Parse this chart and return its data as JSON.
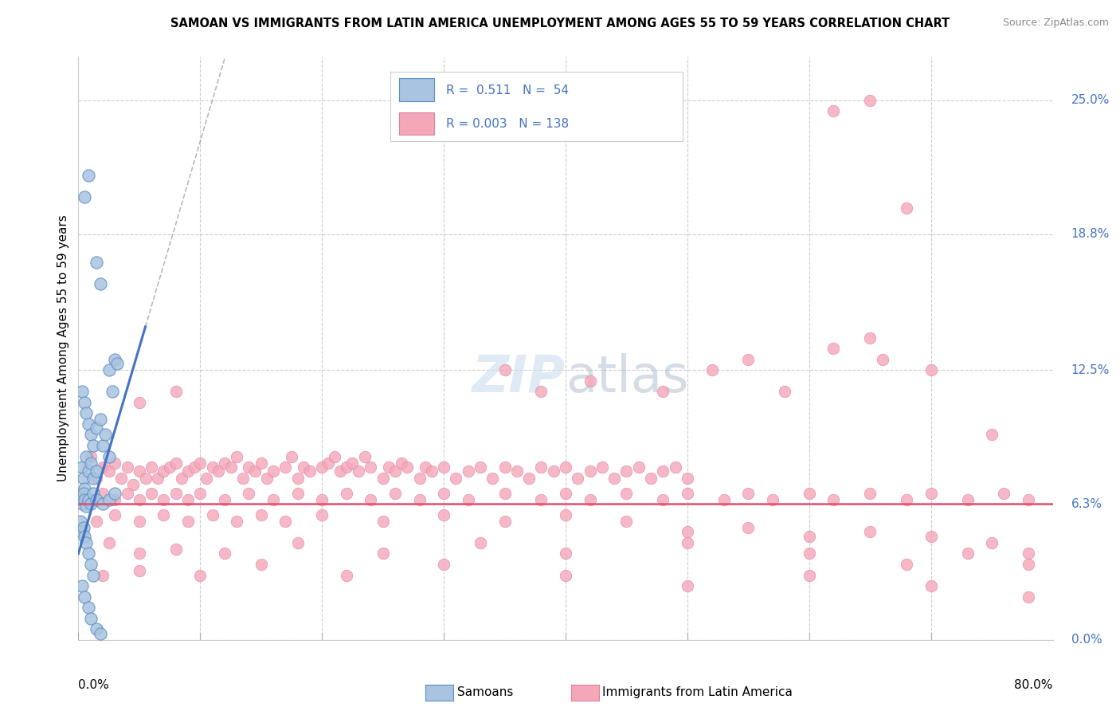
{
  "title": "SAMOAN VS IMMIGRANTS FROM LATIN AMERICA UNEMPLOYMENT AMONG AGES 55 TO 59 YEARS CORRELATION CHART",
  "source": "Source: ZipAtlas.com",
  "ylabel": "Unemployment Among Ages 55 to 59 years",
  "ytick_values": [
    0.0,
    6.3,
    12.5,
    18.8,
    25.0
  ],
  "xlim": [
    0.0,
    80.0
  ],
  "ylim": [
    0.0,
    27.0
  ],
  "color_samoan": "#a8c4e0",
  "color_samoan_edge": "#5b8ec4",
  "color_samoan_line": "#4472c4",
  "color_latin": "#f4a7b9",
  "color_latin_edge": "#e080a0",
  "color_latin_line": "#e05070",
  "samoans": [
    [
      0.5,
      20.5
    ],
    [
      0.8,
      21.5
    ],
    [
      1.5,
      17.5
    ],
    [
      1.8,
      16.5
    ],
    [
      2.5,
      12.5
    ],
    [
      2.8,
      11.5
    ],
    [
      3.0,
      13.0
    ],
    [
      3.2,
      12.8
    ],
    [
      0.3,
      11.5
    ],
    [
      0.5,
      11.0
    ],
    [
      0.6,
      10.5
    ],
    [
      0.8,
      10.0
    ],
    [
      1.0,
      9.5
    ],
    [
      1.2,
      9.0
    ],
    [
      1.5,
      9.8
    ],
    [
      1.8,
      10.2
    ],
    [
      2.0,
      9.0
    ],
    [
      2.2,
      9.5
    ],
    [
      2.5,
      8.5
    ],
    [
      0.3,
      8.0
    ],
    [
      0.4,
      7.5
    ],
    [
      0.5,
      7.0
    ],
    [
      0.6,
      8.5
    ],
    [
      0.8,
      7.8
    ],
    [
      1.0,
      8.2
    ],
    [
      1.2,
      7.5
    ],
    [
      1.5,
      7.8
    ],
    [
      0.2,
      6.5
    ],
    [
      0.3,
      6.3
    ],
    [
      0.4,
      6.8
    ],
    [
      0.5,
      6.5
    ],
    [
      0.6,
      6.2
    ],
    [
      0.8,
      6.5
    ],
    [
      1.0,
      6.3
    ],
    [
      1.2,
      6.8
    ],
    [
      1.5,
      6.5
    ],
    [
      2.0,
      6.3
    ],
    [
      2.5,
      6.5
    ],
    [
      3.0,
      6.8
    ],
    [
      0.2,
      5.5
    ],
    [
      0.3,
      5.0
    ],
    [
      0.4,
      5.2
    ],
    [
      0.5,
      4.8
    ],
    [
      0.6,
      4.5
    ],
    [
      0.8,
      4.0
    ],
    [
      1.0,
      3.5
    ],
    [
      1.2,
      3.0
    ],
    [
      0.3,
      2.5
    ],
    [
      0.5,
      2.0
    ],
    [
      0.8,
      1.5
    ],
    [
      1.0,
      1.0
    ],
    [
      1.5,
      0.5
    ],
    [
      1.8,
      0.3
    ]
  ],
  "latin_america": [
    [
      1.0,
      8.5
    ],
    [
      1.5,
      7.5
    ],
    [
      2.0,
      8.0
    ],
    [
      2.5,
      7.8
    ],
    [
      3.0,
      8.2
    ],
    [
      3.5,
      7.5
    ],
    [
      4.0,
      8.0
    ],
    [
      4.5,
      7.2
    ],
    [
      5.0,
      7.8
    ],
    [
      5.5,
      7.5
    ],
    [
      6.0,
      8.0
    ],
    [
      6.5,
      7.5
    ],
    [
      7.0,
      7.8
    ],
    [
      7.5,
      8.0
    ],
    [
      8.0,
      8.2
    ],
    [
      8.5,
      7.5
    ],
    [
      9.0,
      7.8
    ],
    [
      9.5,
      8.0
    ],
    [
      10.0,
      8.2
    ],
    [
      10.5,
      7.5
    ],
    [
      11.0,
      8.0
    ],
    [
      11.5,
      7.8
    ],
    [
      12.0,
      8.2
    ],
    [
      12.5,
      8.0
    ],
    [
      13.0,
      8.5
    ],
    [
      13.5,
      7.5
    ],
    [
      14.0,
      8.0
    ],
    [
      14.5,
      7.8
    ],
    [
      15.0,
      8.2
    ],
    [
      15.5,
      7.5
    ],
    [
      16.0,
      7.8
    ],
    [
      17.0,
      8.0
    ],
    [
      17.5,
      8.5
    ],
    [
      18.0,
      7.5
    ],
    [
      18.5,
      8.0
    ],
    [
      19.0,
      7.8
    ],
    [
      20.0,
      8.0
    ],
    [
      20.5,
      8.2
    ],
    [
      21.0,
      8.5
    ],
    [
      21.5,
      7.8
    ],
    [
      22.0,
      8.0
    ],
    [
      22.5,
      8.2
    ],
    [
      23.0,
      7.8
    ],
    [
      23.5,
      8.5
    ],
    [
      24.0,
      8.0
    ],
    [
      25.0,
      7.5
    ],
    [
      25.5,
      8.0
    ],
    [
      26.0,
      7.8
    ],
    [
      26.5,
      8.2
    ],
    [
      27.0,
      8.0
    ],
    [
      28.0,
      7.5
    ],
    [
      28.5,
      8.0
    ],
    [
      29.0,
      7.8
    ],
    [
      30.0,
      8.0
    ],
    [
      31.0,
      7.5
    ],
    [
      32.0,
      7.8
    ],
    [
      33.0,
      8.0
    ],
    [
      34.0,
      7.5
    ],
    [
      35.0,
      8.0
    ],
    [
      36.0,
      7.8
    ],
    [
      37.0,
      7.5
    ],
    [
      38.0,
      8.0
    ],
    [
      39.0,
      7.8
    ],
    [
      40.0,
      8.0
    ],
    [
      41.0,
      7.5
    ],
    [
      42.0,
      7.8
    ],
    [
      43.0,
      8.0
    ],
    [
      44.0,
      7.5
    ],
    [
      45.0,
      7.8
    ],
    [
      46.0,
      8.0
    ],
    [
      47.0,
      7.5
    ],
    [
      48.0,
      7.8
    ],
    [
      49.0,
      8.0
    ],
    [
      50.0,
      7.5
    ],
    [
      1.0,
      6.5
    ],
    [
      2.0,
      6.8
    ],
    [
      3.0,
      6.5
    ],
    [
      4.0,
      6.8
    ],
    [
      5.0,
      6.5
    ],
    [
      6.0,
      6.8
    ],
    [
      7.0,
      6.5
    ],
    [
      8.0,
      6.8
    ],
    [
      9.0,
      6.5
    ],
    [
      10.0,
      6.8
    ],
    [
      12.0,
      6.5
    ],
    [
      14.0,
      6.8
    ],
    [
      16.0,
      6.5
    ],
    [
      18.0,
      6.8
    ],
    [
      20.0,
      6.5
    ],
    [
      22.0,
      6.8
    ],
    [
      24.0,
      6.5
    ],
    [
      26.0,
      6.8
    ],
    [
      28.0,
      6.5
    ],
    [
      30.0,
      6.8
    ],
    [
      32.0,
      6.5
    ],
    [
      35.0,
      6.8
    ],
    [
      38.0,
      6.5
    ],
    [
      40.0,
      6.8
    ],
    [
      42.0,
      6.5
    ],
    [
      45.0,
      6.8
    ],
    [
      48.0,
      6.5
    ],
    [
      50.0,
      6.8
    ],
    [
      53.0,
      6.5
    ],
    [
      55.0,
      6.8
    ],
    [
      57.0,
      6.5
    ],
    [
      60.0,
      6.8
    ],
    [
      62.0,
      6.5
    ],
    [
      65.0,
      6.8
    ],
    [
      68.0,
      6.5
    ],
    [
      70.0,
      6.8
    ],
    [
      73.0,
      6.5
    ],
    [
      76.0,
      6.8
    ],
    [
      78.0,
      6.5
    ],
    [
      1.5,
      5.5
    ],
    [
      3.0,
      5.8
    ],
    [
      5.0,
      5.5
    ],
    [
      7.0,
      5.8
    ],
    [
      9.0,
      5.5
    ],
    [
      11.0,
      5.8
    ],
    [
      13.0,
      5.5
    ],
    [
      15.0,
      5.8
    ],
    [
      17.0,
      5.5
    ],
    [
      20.0,
      5.8
    ],
    [
      25.0,
      5.5
    ],
    [
      30.0,
      5.8
    ],
    [
      35.0,
      5.5
    ],
    [
      40.0,
      5.8
    ],
    [
      45.0,
      5.5
    ],
    [
      50.0,
      5.0
    ],
    [
      55.0,
      5.2
    ],
    [
      60.0,
      4.8
    ],
    [
      65.0,
      5.0
    ],
    [
      70.0,
      4.8
    ],
    [
      75.0,
      4.5
    ],
    [
      78.0,
      4.0
    ],
    [
      2.5,
      4.5
    ],
    [
      5.0,
      4.0
    ],
    [
      8.0,
      4.2
    ],
    [
      12.0,
      4.0
    ],
    [
      18.0,
      4.5
    ],
    [
      25.0,
      4.0
    ],
    [
      33.0,
      4.5
    ],
    [
      40.0,
      4.0
    ],
    [
      50.0,
      4.5
    ],
    [
      60.0,
      4.0
    ],
    [
      68.0,
      3.5
    ],
    [
      73.0,
      4.0
    ],
    [
      78.0,
      3.5
    ],
    [
      2.0,
      3.0
    ],
    [
      5.0,
      3.2
    ],
    [
      10.0,
      3.0
    ],
    [
      15.0,
      3.5
    ],
    [
      22.0,
      3.0
    ],
    [
      30.0,
      3.5
    ],
    [
      40.0,
      3.0
    ],
    [
      50.0,
      2.5
    ],
    [
      60.0,
      3.0
    ],
    [
      70.0,
      2.5
    ],
    [
      78.0,
      2.0
    ],
    [
      35.0,
      12.5
    ],
    [
      38.0,
      11.5
    ],
    [
      42.0,
      12.0
    ],
    [
      48.0,
      11.5
    ],
    [
      52.0,
      12.5
    ],
    [
      55.0,
      13.0
    ],
    [
      58.0,
      11.5
    ],
    [
      62.0,
      13.5
    ],
    [
      65.0,
      14.0
    ],
    [
      66.0,
      13.0
    ],
    [
      70.0,
      12.5
    ],
    [
      75.0,
      9.5
    ],
    [
      62.0,
      24.5
    ],
    [
      65.0,
      25.0
    ],
    [
      68.0,
      20.0
    ],
    [
      5.0,
      11.0
    ],
    [
      8.0,
      11.5
    ]
  ]
}
